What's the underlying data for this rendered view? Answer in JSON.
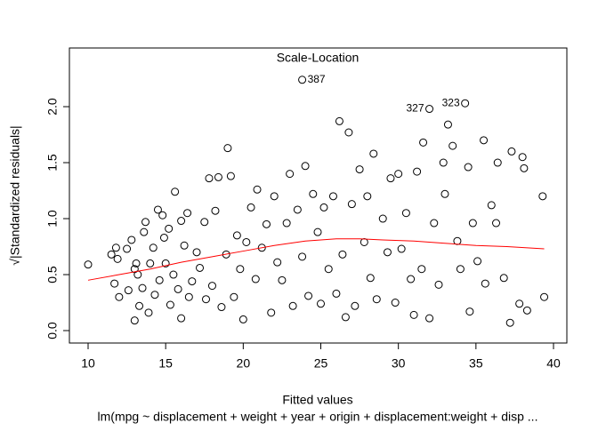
{
  "chart_data": {
    "type": "scatter",
    "title": "Scale-Location",
    "xlabel": "Fitted values",
    "ylabel": "√|Standardized residuals|",
    "subtitle": "lm(mpg ~ displacement + weight + year + origin + displacement:weight + disp ...",
    "xlim": [
      8.795,
      40.86
    ],
    "ylim": [
      -0.111,
      2.524
    ],
    "xticks": [
      10,
      15,
      20,
      25,
      30,
      35,
      40
    ],
    "yticks": [
      {
        "value": 0,
        "label": "0.0"
      },
      {
        "value": 0.5,
        "label": "0.5"
      },
      {
        "value": 1,
        "label": "1.0"
      },
      {
        "value": 1.5,
        "label": "1.5"
      },
      {
        "value": 2,
        "label": "2.0"
      }
    ],
    "color": "#000000",
    "x": [
      10.0,
      11.5,
      11.8,
      11.7,
      12.0,
      11.9,
      12.6,
      12.5,
      12.8,
      13.0,
      13.0,
      13.1,
      13.2,
      13.3,
      13.5,
      13.6,
      13.7,
      13.9,
      14.0,
      14.2,
      14.3,
      14.5,
      14.6,
      14.8,
      14.9,
      15.0,
      15.2,
      15.3,
      15.5,
      15.6,
      15.8,
      16.0,
      16.0,
      16.2,
      16.4,
      16.5,
      16.7,
      17.0,
      17.2,
      17.5,
      17.6,
      17.8,
      18.0,
      18.2,
      18.4,
      18.6,
      18.9,
      19.0,
      19.2,
      19.4,
      19.6,
      19.8,
      20.0,
      20.2,
      20.5,
      20.8,
      20.9,
      21.2,
      21.5,
      21.8,
      22.0,
      22.2,
      22.5,
      22.8,
      23.0,
      23.2,
      23.5,
      23.8,
      23.8,
      24.0,
      24.2,
      24.5,
      24.8,
      25.0,
      25.2,
      25.5,
      25.8,
      26.0,
      26.2,
      26.4,
      26.6,
      26.8,
      27.0,
      27.2,
      27.5,
      27.8,
      28.0,
      28.2,
      28.4,
      28.6,
      29.0,
      29.3,
      29.5,
      29.8,
      30.0,
      30.2,
      30.5,
      30.8,
      31.0,
      31.2,
      31.5,
      31.6,
      32.0,
      32.0,
      32.3,
      32.6,
      32.9,
      33.0,
      33.2,
      33.5,
      33.8,
      34.0,
      34.3,
      34.5,
      34.6,
      34.8,
      35.1,
      35.5,
      35.6,
      36.0,
      36.3,
      36.4,
      36.8,
      37.2,
      37.3,
      37.8,
      38.0,
      38.1,
      38.3,
      39.3,
      39.4
    ],
    "y": [
      0.59,
      0.68,
      0.74,
      0.42,
      0.3,
      0.64,
      0.36,
      0.73,
      0.81,
      0.09,
      0.55,
      0.6,
      0.5,
      0.22,
      0.38,
      0.88,
      0.97,
      0.16,
      0.6,
      0.74,
      0.32,
      1.08,
      0.45,
      1.03,
      0.83,
      0.6,
      0.91,
      0.23,
      0.5,
      1.24,
      0.37,
      0.11,
      0.98,
      0.76,
      1.05,
      0.3,
      0.44,
      0.7,
      0.56,
      0.97,
      0.28,
      1.36,
      0.4,
      1.07,
      1.37,
      0.21,
      0.68,
      1.63,
      1.38,
      0.3,
      0.85,
      0.55,
      0.1,
      0.79,
      1.1,
      0.46,
      1.26,
      0.74,
      0.95,
      0.16,
      1.2,
      0.61,
      0.45,
      0.96,
      1.4,
      0.22,
      1.08,
      0.66,
      2.24,
      1.47,
      0.31,
      1.22,
      0.88,
      0.24,
      1.1,
      0.55,
      1.2,
      0.33,
      1.87,
      0.68,
      0.12,
      1.77,
      1.13,
      0.22,
      1.44,
      0.79,
      1.2,
      0.47,
      1.58,
      0.28,
      1.0,
      0.7,
      1.36,
      0.25,
      1.4,
      0.73,
      1.05,
      0.46,
      0.14,
      1.42,
      0.55,
      1.68,
      1.98,
      0.11,
      0.96,
      0.41,
      1.5,
      1.22,
      1.84,
      1.65,
      0.8,
      0.55,
      2.03,
      1.46,
      0.17,
      0.96,
      0.62,
      1.7,
      0.42,
      1.12,
      0.96,
      1.5,
      0.47,
      0.07,
      1.6,
      0.24,
      1.55,
      1.45,
      0.18,
      1.2,
      0.3
    ],
    "smooth": {
      "color": "#ff0000",
      "x": [
        10,
        12,
        14,
        16,
        18,
        20,
        22,
        24,
        26,
        27.5,
        29,
        31,
        33,
        35,
        37,
        39.4
      ],
      "y": [
        0.45,
        0.5,
        0.55,
        0.61,
        0.66,
        0.71,
        0.76,
        0.8,
        0.82,
        0.82,
        0.81,
        0.8,
        0.78,
        0.76,
        0.75,
        0.73
      ]
    },
    "annotations": [
      {
        "x": 23.8,
        "y": 2.24,
        "label": "387",
        "side": "right"
      },
      {
        "x": 32.0,
        "y": 1.98,
        "label": "327",
        "side": "left"
      },
      {
        "x": 34.3,
        "y": 2.03,
        "label": "323",
        "side": "left"
      }
    ]
  }
}
